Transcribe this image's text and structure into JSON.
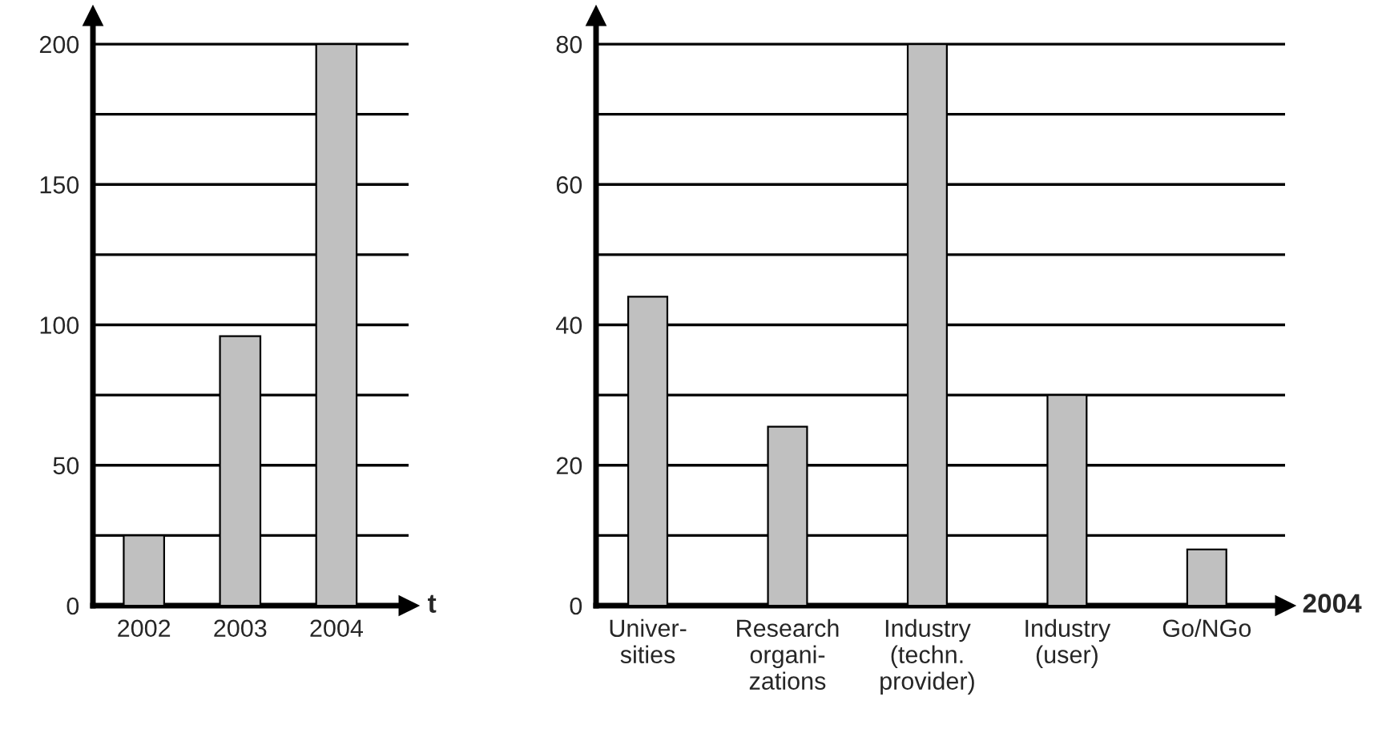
{
  "chart_data": [
    {
      "type": "bar",
      "categories": [
        "2002",
        "2003",
        "2004"
      ],
      "xlabel": "t",
      "values": [
        25,
        96,
        200
      ],
      "color": "#c0c0c0",
      "ylim": [
        0,
        210
      ],
      "yticks": [
        0,
        {
          "value": 25,
          "label": null
        },
        50,
        {
          "value": 75,
          "label": null
        },
        100,
        {
          "value": 125,
          "label": null
        },
        150,
        {
          "value": 175,
          "label": null
        },
        200
      ],
      "grid": "y"
    },
    {
      "type": "bar",
      "categories": [
        "Univer-\nsities",
        "Research\norgani-\nzations",
        "Industry\n(techn.\nprovider)",
        "Industry\n(user)",
        "Go/NGo"
      ],
      "xlabel": "2004",
      "values": [
        44,
        25.5,
        80,
        30,
        8
      ],
      "color": "#c0c0c0",
      "ylim": [
        0,
        84
      ],
      "yticks": [
        0,
        {
          "value": 10,
          "label": null
        },
        20,
        {
          "value": 30,
          "label": null
        },
        40,
        {
          "value": 50,
          "label": null
        },
        60,
        {
          "value": 70,
          "label": null
        },
        80
      ],
      "grid": "y"
    }
  ]
}
